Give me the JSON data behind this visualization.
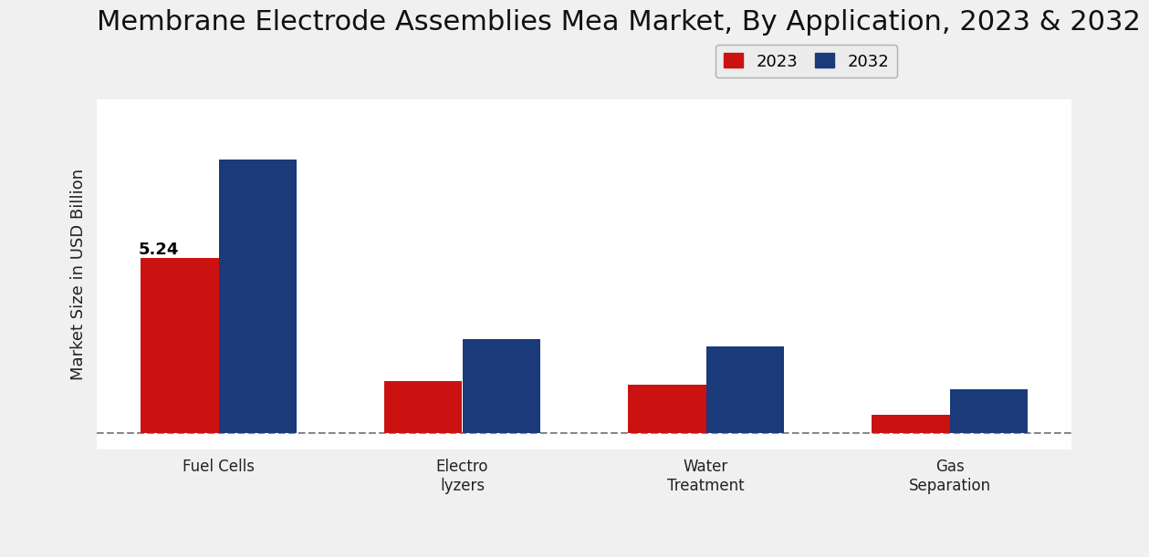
{
  "title": "Membrane Electrode Assemblies Mea Market, By Application, 2023 & 2032",
  "ylabel": "Market Size in USD Billion",
  "categories": [
    "Fuel Cells",
    "Electro\nlyzers",
    "Water\nTreatment",
    "Gas\nSeparation"
  ],
  "values_2023": [
    5.24,
    1.55,
    1.45,
    0.55
  ],
  "values_2032": [
    8.2,
    2.8,
    2.6,
    1.3
  ],
  "color_2023": "#cc1111",
  "color_2032": "#1a3a7a",
  "annotation_label": "5.24",
  "legend_labels": [
    "2023",
    "2032"
  ],
  "bar_width": 0.32,
  "ylim": [
    -0.5,
    10
  ],
  "title_fontsize": 22,
  "label_fontsize": 13,
  "tick_fontsize": 12,
  "legend_fontsize": 13
}
